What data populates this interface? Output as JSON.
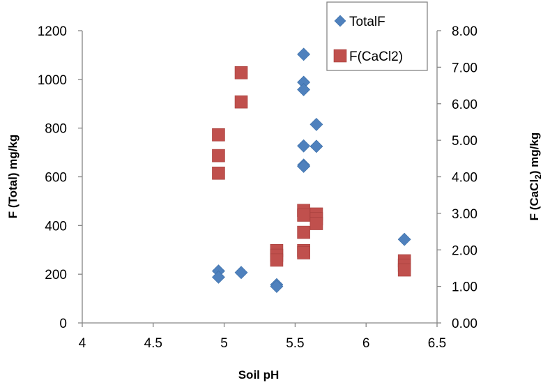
{
  "chart_data": {
    "type": "scatter",
    "title": "",
    "xlabel": "Soil pH",
    "ylabel": "F (Total) mg/kg",
    "y2label_parts": [
      "F (CaCl",
      "2",
      ") mg/kg"
    ],
    "xlim": [
      4,
      6.5
    ],
    "ylim": [
      0,
      1200
    ],
    "y2lim": [
      0,
      8
    ],
    "xticks": [
      "4",
      "4.5",
      "5",
      "5.5",
      "6",
      "6.5"
    ],
    "yticks": [
      "0",
      "200",
      "400",
      "600",
      "800",
      "1000",
      "1200"
    ],
    "y2ticks": [
      "0.00",
      "1.00",
      "2.00",
      "3.00",
      "4.00",
      "5.00",
      "6.00",
      "7.00",
      "8.00"
    ],
    "grid": false,
    "legend_position": "top-right",
    "series": [
      {
        "name": "TotalF",
        "axis": "left",
        "marker": "diamond",
        "color": "#4F81BD",
        "points": [
          {
            "x": 4.96,
            "y": 213
          },
          {
            "x": 4.96,
            "y": 188
          },
          {
            "x": 5.12,
            "y": 207
          },
          {
            "x": 5.37,
            "y": 157
          },
          {
            "x": 5.37,
            "y": 150
          },
          {
            "x": 5.56,
            "y": 1103
          },
          {
            "x": 5.56,
            "y": 988
          },
          {
            "x": 5.56,
            "y": 958
          },
          {
            "x": 5.56,
            "y": 727
          },
          {
            "x": 5.56,
            "y": 648
          },
          {
            "x": 5.56,
            "y": 643
          },
          {
            "x": 5.65,
            "y": 815
          },
          {
            "x": 5.65,
            "y": 725
          },
          {
            "x": 6.27,
            "y": 343
          }
        ]
      },
      {
        "name": "F(CaCl2)",
        "axis": "right",
        "marker": "square",
        "color": "#C0504D",
        "points": [
          {
            "x": 4.96,
            "y": 5.15
          },
          {
            "x": 4.96,
            "y": 4.58
          },
          {
            "x": 4.96,
            "y": 4.1
          },
          {
            "x": 5.12,
            "y": 6.85
          },
          {
            "x": 5.12,
            "y": 6.05
          },
          {
            "x": 5.37,
            "y": 1.98
          },
          {
            "x": 5.37,
            "y": 1.85
          },
          {
            "x": 5.37,
            "y": 1.72
          },
          {
            "x": 5.56,
            "y": 3.08
          },
          {
            "x": 5.56,
            "y": 2.95
          },
          {
            "x": 5.56,
            "y": 2.48
          },
          {
            "x": 5.56,
            "y": 1.98
          },
          {
            "x": 5.56,
            "y": 1.92
          },
          {
            "x": 5.65,
            "y": 2.98
          },
          {
            "x": 5.65,
            "y": 2.85
          },
          {
            "x": 5.65,
            "y": 2.72
          },
          {
            "x": 6.27,
            "y": 1.7
          },
          {
            "x": 6.27,
            "y": 1.58
          },
          {
            "x": 6.27,
            "y": 1.45
          }
        ]
      }
    ]
  }
}
